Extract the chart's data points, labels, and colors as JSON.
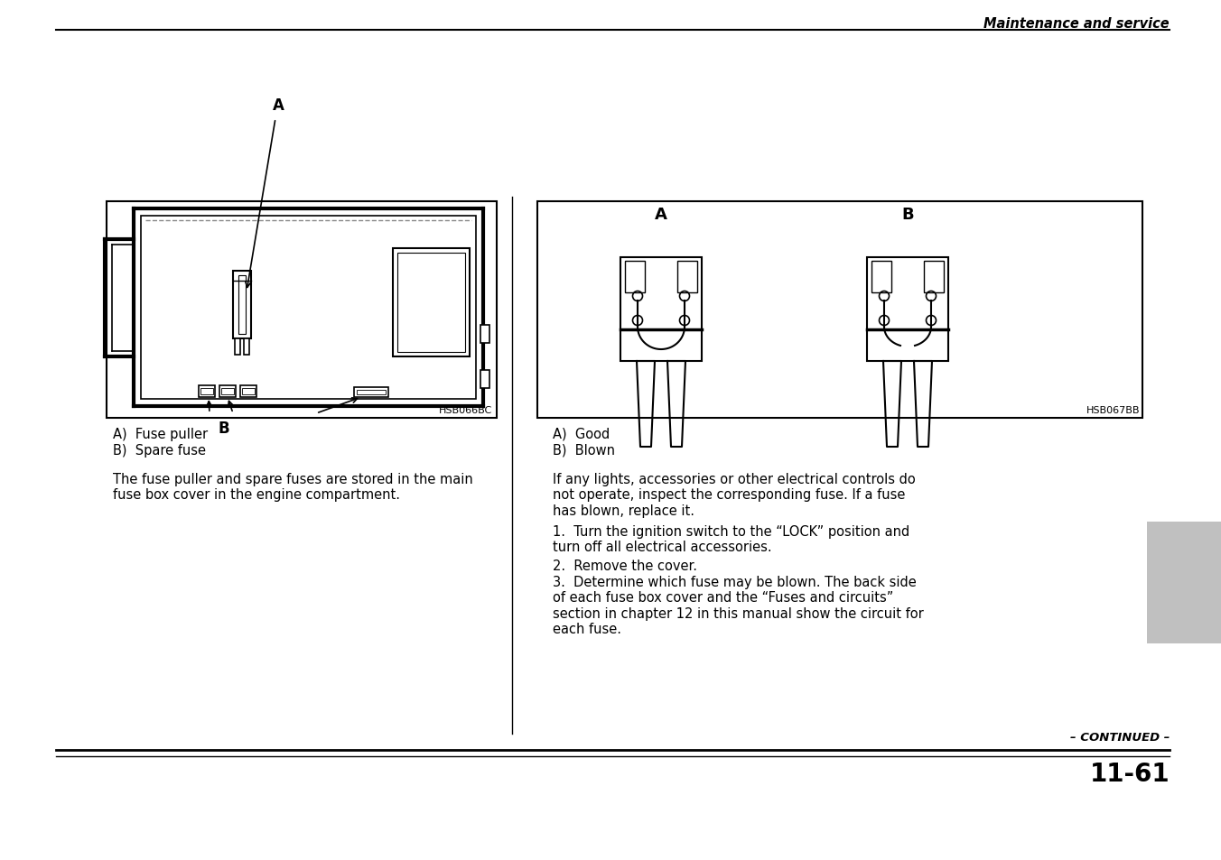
{
  "page_title": "Maintenance and service",
  "continued_text": "– CONTINUED –",
  "page_number": "11-61",
  "left_diagram_label_A": "A",
  "left_diagram_label_B": "B",
  "left_diagram_code": "HSB066BC",
  "left_caption_a": "A)  Fuse puller",
  "left_caption_b": "B)  Spare fuse",
  "left_body": "The fuse puller and spare fuses are stored in the main\nfuse box cover in the engine compartment.",
  "right_diagram_label_A": "A",
  "right_diagram_label_B": "B",
  "right_diagram_code": "HSB067BB",
  "right_caption_a": "A)  Good",
  "right_caption_b": "B)  Blown",
  "right_body_1": "If any lights, accessories or other electrical controls do\nnot operate, inspect the corresponding fuse. If a fuse\nhas blown, replace it.",
  "right_body_2": "1.  Turn the ignition switch to the “LOCK” position and\nturn off all electrical accessories.",
  "right_body_3": "2.  Remove the cover.",
  "right_body_4": "3.  Determine which fuse may be blown. The back side\nof each fuse box cover and the “Fuses and circuits”\nsection in chapter 12 in this manual show the circuit for\neach fuse.",
  "gray_box_color": "#c0c0c0",
  "background_color": "#ffffff",
  "text_color": "#000000"
}
